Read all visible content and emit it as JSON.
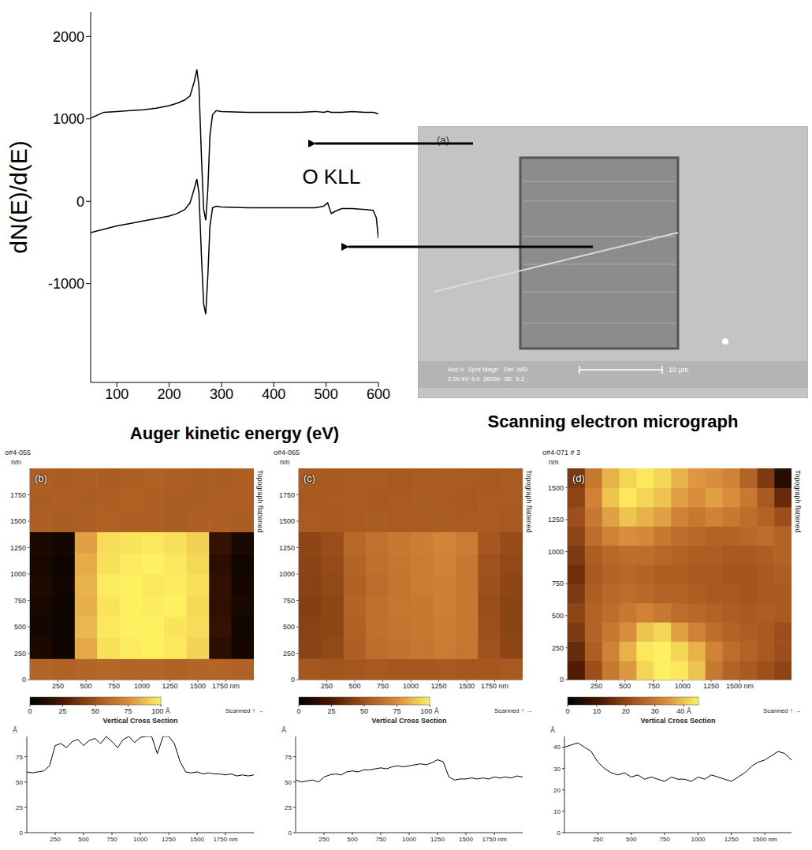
{
  "chart_data": [
    {
      "type": "line",
      "xlabel": "Auger kinetic energy (eV)",
      "ylabel": "dN(E)/d(E)",
      "x": [
        50,
        75,
        100,
        125,
        150,
        175,
        200,
        215,
        230,
        240,
        248,
        253,
        257,
        262,
        266,
        270,
        274,
        278,
        283,
        290,
        300,
        350,
        400,
        450,
        480,
        495,
        503,
        510,
        518,
        530,
        550,
        575,
        590,
        596,
        600
      ],
      "series": [
        {
          "color": "#000000",
          "values": [
            1010,
            1080,
            1090,
            1100,
            1110,
            1130,
            1160,
            1190,
            1230,
            1280,
            1450,
            1600,
            1400,
            500,
            -100,
            -230,
            150,
            800,
            1050,
            1100,
            1090,
            1080,
            1080,
            1080,
            1090,
            1080,
            1090,
            1080,
            1080,
            1080,
            1090,
            1080,
            1080,
            1070,
            1060
          ]
        },
        {
          "color": "#000000",
          "values": [
            -380,
            -340,
            -300,
            -270,
            -240,
            -210,
            -180,
            -150,
            -100,
            -20,
            150,
            270,
            100,
            -700,
            -1250,
            -1370,
            -900,
            -300,
            -80,
            -60,
            -70,
            -80,
            -80,
            -80,
            -80,
            -60,
            -20,
            -150,
            -120,
            -90,
            -90,
            -100,
            -110,
            -200,
            -450
          ]
        }
      ],
      "xlim": [
        50,
        600
      ],
      "xticks": [
        100,
        200,
        300,
        400,
        500,
        600
      ],
      "ylim": [
        -2200,
        2300
      ],
      "yticks": [
        -1000,
        0,
        1000,
        2000
      ],
      "annotations": [
        {
          "text": "O KLL",
          "x": 510,
          "y": 300
        }
      ]
    },
    {
      "type": "heatmap",
      "title": "o#4-055",
      "panel": "(b)",
      "side_label": "Topograph flattened",
      "scan_label": "Scanned ↑ →",
      "ylabel": "nm",
      "x": [
        100,
        300,
        500,
        700,
        900,
        1100,
        1300,
        1500,
        1700,
        1900
      ],
      "y": [
        100,
        300,
        500,
        700,
        900,
        1100,
        1300,
        1500,
        1700,
        1900
      ],
      "cells": [
        [
          58,
          57,
          58,
          59,
          58,
          58,
          57,
          58,
          58,
          57
        ],
        [
          9,
          5,
          82,
          96,
          99,
          100,
          98,
          93,
          15,
          7
        ],
        [
          7,
          4,
          86,
          98,
          100,
          100,
          97,
          95,
          18,
          6
        ],
        [
          8,
          5,
          84,
          97,
          100,
          99,
          100,
          94,
          16,
          8
        ],
        [
          10,
          6,
          85,
          99,
          100,
          98,
          99,
          96,
          17,
          7
        ],
        [
          8,
          5,
          83,
          96,
          99,
          100,
          98,
          94,
          15,
          6
        ],
        [
          9,
          6,
          80,
          95,
          97,
          98,
          96,
          92,
          18,
          8
        ],
        [
          56,
          55,
          56,
          57,
          56,
          56,
          55,
          56,
          56,
          55
        ],
        [
          55,
          56,
          55,
          56,
          57,
          56,
          55,
          55,
          56,
          56
        ],
        [
          56,
          55,
          56,
          55,
          56,
          57,
          56,
          55,
          55,
          56
        ]
      ],
      "xlim": [
        0,
        2000
      ],
      "xticks": [
        250,
        500,
        750,
        1000,
        1250,
        1500,
        {
          "value": 1750,
          "label": "1750 nm"
        }
      ],
      "ylim": [
        0,
        2000
      ],
      "yticks": [
        0,
        250,
        500,
        750,
        1000,
        1250,
        1500,
        1750
      ],
      "section_x": 1050,
      "colorbar": {
        "range": [
          0,
          100
        ],
        "ticks": [
          0,
          25,
          50,
          75,
          {
            "value": 100,
            "label": "100 Å"
          }
        ]
      }
    },
    {
      "type": "line",
      "title": "Vertical Cross Section",
      "ylabel": "Å",
      "color": "#000000",
      "x": [
        0,
        50,
        100,
        150,
        200,
        250,
        300,
        350,
        400,
        450,
        500,
        550,
        600,
        650,
        700,
        750,
        800,
        850,
        900,
        950,
        1000,
        1050,
        1100,
        1150,
        1200,
        1250,
        1300,
        1350,
        1400,
        1450,
        1500,
        1550,
        1600,
        1650,
        1700,
        1750,
        1800,
        1850,
        1900,
        1950,
        2000
      ],
      "values": [
        60,
        59,
        60,
        61,
        66,
        86,
        88,
        84,
        90,
        92,
        86,
        91,
        93,
        88,
        95,
        90,
        84,
        92,
        95,
        89,
        94,
        95,
        95,
        78,
        95,
        95,
        88,
        70,
        60,
        59,
        60,
        58,
        59,
        58,
        58,
        57,
        58,
        56,
        57,
        56,
        57
      ],
      "xlim": [
        0,
        2000
      ],
      "xticks": [
        250,
        500,
        750,
        1000,
        1250,
        1500,
        {
          "value": 1750,
          "label": "1750 nm"
        }
      ],
      "ylim": [
        0,
        95
      ],
      "yticks": [
        0,
        25,
        50,
        75
      ]
    },
    {
      "type": "heatmap",
      "title": "o#4-065",
      "panel": "(c)",
      "side_label": "Topograph flattened",
      "scan_label": "Scanned ↑ →",
      "ylabel": "nm",
      "x": [
        100,
        300,
        500,
        700,
        900,
        1100,
        1300,
        1500,
        1700,
        1900
      ],
      "y": [
        100,
        300,
        500,
        700,
        900,
        1100,
        1300,
        1500,
        1700,
        1900
      ],
      "cells": [
        [
          52,
          51,
          52,
          53,
          52,
          52,
          53,
          52,
          52,
          53
        ],
        [
          44,
          46,
          56,
          62,
          64,
          66,
          68,
          66,
          50,
          45
        ],
        [
          43,
          45,
          57,
          63,
          65,
          67,
          69,
          67,
          49,
          44
        ],
        [
          42,
          45,
          58,
          63,
          66,
          67,
          70,
          67,
          48,
          44
        ],
        [
          43,
          46,
          57,
          62,
          65,
          68,
          70,
          66,
          49,
          45
        ],
        [
          44,
          47,
          58,
          63,
          66,
          68,
          71,
          67,
          50,
          46
        ],
        [
          45,
          48,
          60,
          64,
          67,
          69,
          72,
          68,
          52,
          47
        ],
        [
          54,
          53,
          54,
          55,
          54,
          54,
          55,
          54,
          54,
          53
        ],
        [
          53,
          54,
          54,
          53,
          54,
          55,
          54,
          53,
          54,
          54
        ],
        [
          54,
          53,
          54,
          54,
          53,
          54,
          55,
          54,
          53,
          54
        ]
      ],
      "xlim": [
        0,
        2000
      ],
      "xticks": [
        250,
        500,
        750,
        1000,
        1250,
        1500,
        {
          "value": 1750,
          "label": "1750 nm"
        }
      ],
      "ylim": [
        0,
        2000
      ],
      "yticks": [
        0,
        250,
        500,
        750,
        1000,
        1250,
        1500,
        1750
      ],
      "section_x": 980,
      "colorbar": {
        "range": [
          0,
          100
        ],
        "ticks": [
          0,
          25,
          50,
          75,
          {
            "value": 100,
            "label": "100 Å"
          }
        ]
      }
    },
    {
      "type": "line",
      "title": "Vertical Cross Section",
      "ylabel": "Å",
      "color": "#000000",
      "x": [
        0,
        50,
        100,
        150,
        200,
        250,
        300,
        350,
        400,
        450,
        500,
        550,
        600,
        650,
        700,
        750,
        800,
        850,
        900,
        950,
        1000,
        1050,
        1100,
        1150,
        1200,
        1250,
        1300,
        1350,
        1400,
        1450,
        1500,
        1550,
        1600,
        1650,
        1700,
        1750,
        1800,
        1850,
        1900,
        1950,
        2000
      ],
      "values": [
        52,
        50,
        51,
        52,
        50,
        55,
        57,
        58,
        57,
        60,
        61,
        60,
        62,
        62,
        63,
        64,
        63,
        65,
        66,
        65,
        66,
        67,
        68,
        67,
        69,
        72,
        70,
        55,
        52,
        53,
        53,
        54,
        53,
        54,
        53,
        55,
        54,
        55,
        54,
        56,
        55
      ],
      "xlim": [
        0,
        2000
      ],
      "xticks": [
        250,
        500,
        750,
        1000,
        1250,
        1500,
        {
          "value": 1750,
          "label": "1750 nm"
        }
      ],
      "ylim": [
        0,
        95
      ],
      "yticks": [
        0,
        25,
        50,
        75
      ]
    },
    {
      "type": "heatmap",
      "title": "o#4-071 # 3",
      "panel": "(d)",
      "side_label": "Topograph flattened",
      "scan_label": "Scanned ↑ →",
      "ylabel": "nm",
      "x": [
        75,
        225,
        375,
        525,
        675,
        825,
        975,
        1125,
        1275,
        1425,
        1575,
        1725,
        1875
      ],
      "y": [
        75,
        225,
        375,
        525,
        675,
        825,
        975,
        1125,
        1275,
        1425,
        1575
      ],
      "cells": [
        [
          12,
          22,
          30,
          35,
          42,
          45,
          44,
          40,
          30,
          26,
          24,
          22,
          20
        ],
        [
          15,
          25,
          32,
          38,
          44,
          46,
          42,
          38,
          32,
          28,
          26,
          24,
          22
        ],
        [
          18,
          26,
          30,
          34,
          40,
          42,
          36,
          32,
          28,
          26,
          25,
          24,
          22
        ],
        [
          20,
          26,
          28,
          30,
          32,
          30,
          28,
          27,
          26,
          25,
          24,
          25,
          24
        ],
        [
          18,
          25,
          27,
          28,
          27,
          26,
          26,
          25,
          24,
          24,
          23,
          24,
          24
        ],
        [
          16,
          24,
          26,
          27,
          26,
          25,
          25,
          24,
          24,
          23,
          23,
          24,
          25
        ],
        [
          18,
          25,
          27,
          28,
          28,
          27,
          26,
          25,
          25,
          24,
          24,
          25,
          26
        ],
        [
          20,
          28,
          32,
          34,
          33,
          30,
          28,
          27,
          26,
          26,
          27,
          28,
          26
        ],
        [
          22,
          30,
          36,
          40,
          38,
          36,
          32,
          30,
          32,
          30,
          28,
          26,
          22
        ],
        [
          20,
          32,
          40,
          44,
          42,
          40,
          36,
          34,
          36,
          34,
          30,
          24,
          15
        ],
        [
          18,
          30,
          38,
          42,
          44,
          42,
          38,
          35,
          34,
          32,
          26,
          18,
          6
        ]
      ],
      "xlim": [
        0,
        1950
      ],
      "xticks": [
        250,
        500,
        750,
        1000,
        1250,
        {
          "value": 1500,
          "label": "1500 nm"
        }
      ],
      "ylim": [
        0,
        1650
      ],
      "yticks": [
        0,
        250,
        500,
        750,
        1000,
        1250,
        1500
      ],
      "section_x": 1170,
      "colorbar": {
        "range": [
          0,
          45
        ],
        "ticks": [
          0,
          10,
          20,
          30,
          {
            "value": 40,
            "label": "40 Å"
          }
        ]
      }
    },
    {
      "type": "line",
      "title": "Vertical Cross Section",
      "ylabel": "Å",
      "color": "#000000",
      "x": [
        0,
        50,
        100,
        150,
        200,
        250,
        300,
        350,
        400,
        450,
        500,
        550,
        600,
        650,
        700,
        750,
        800,
        850,
        900,
        950,
        1000,
        1050,
        1100,
        1150,
        1200,
        1250,
        1300,
        1350,
        1400,
        1450,
        1500,
        1550,
        1600,
        1650,
        1700
      ],
      "values": [
        40,
        41,
        42,
        40,
        38,
        33,
        30,
        28,
        27,
        28,
        26,
        27,
        25,
        26,
        25,
        24,
        26,
        25,
        25,
        24,
        26,
        25,
        27,
        26,
        25,
        24,
        26,
        28,
        31,
        33,
        34,
        36,
        38,
        37,
        34
      ],
      "xlim": [
        0,
        1700
      ],
      "xticks": [
        250,
        500,
        750,
        1000,
        1250,
        {
          "value": 1500,
          "label": "1500 nm"
        }
      ],
      "ylim": [
        0,
        45
      ],
      "yticks": [
        0,
        10,
        20,
        30,
        40
      ]
    }
  ],
  "micrograph": {
    "label": "(a)",
    "info": [
      "Acc.V  Spot Magn   Det  WD",
      "2.00 kV 4.0  2605x  SE  6.2"
    ],
    "scale_bar": "10 µm",
    "caption": "Scanning electron micrograph"
  }
}
